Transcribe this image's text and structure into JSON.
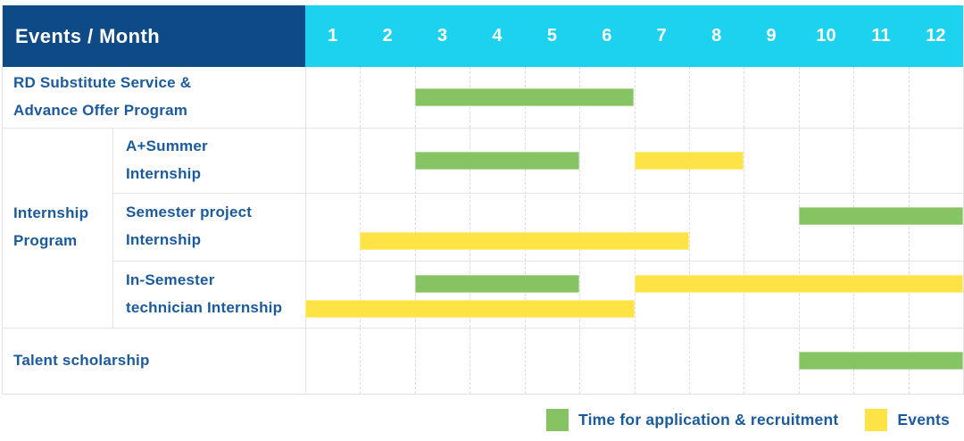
{
  "palette": {
    "header_bg": "#0e4a85",
    "months_bg": "#1cd2ef",
    "bar_green": "#85c363",
    "bar_yellow": "#fde345",
    "text_blue": "#1a5a9e",
    "grid_line": "#e3e3e3"
  },
  "header": {
    "title": "Events / Month",
    "months": [
      "1",
      "2",
      "3",
      "4",
      "5",
      "6",
      "7",
      "8",
      "9",
      "10",
      "11",
      "12"
    ]
  },
  "legend": {
    "items": [
      {
        "label": "Time for application & recruitment",
        "color": "green"
      },
      {
        "label": "Events",
        "color": "yellow"
      }
    ]
  },
  "chart_data": {
    "type": "gantt",
    "unit": "month",
    "x_domain": [
      1,
      12
    ],
    "legend_position": "bottom-right",
    "group": {
      "label": "Internship\nProgram",
      "first_row": 1,
      "last_row": 3
    },
    "rows": [
      {
        "label": "RD Substitute Service &\nAdvance Offer Program",
        "bars": [
          {
            "color": "green",
            "meaning": "Time for application & recruitment",
            "start": 3,
            "end": 6,
            "lane": "mid"
          }
        ]
      },
      {
        "label": "A+Summer\nInternship",
        "bars": [
          {
            "color": "green",
            "meaning": "Time for application & recruitment",
            "start": 3,
            "end": 5,
            "lane": "mid"
          },
          {
            "color": "yellow",
            "meaning": "Events",
            "start": 7,
            "end": 8,
            "lane": "mid"
          }
        ]
      },
      {
        "label": "Semester project\nInternship",
        "bars": [
          {
            "color": "green",
            "meaning": "Time for application & recruitment",
            "start": 10,
            "end": 12,
            "lane": "upper"
          },
          {
            "color": "yellow",
            "meaning": "Events",
            "start": 2,
            "end": 7,
            "lane": "lower"
          }
        ]
      },
      {
        "label": "In-Semester\ntechnician Internship",
        "bars": [
          {
            "color": "green",
            "meaning": "Time for application & recruitment",
            "start": 3,
            "end": 5,
            "lane": "upper"
          },
          {
            "color": "yellow",
            "meaning": "Events",
            "start": 7,
            "end": 12,
            "lane": "upper"
          },
          {
            "color": "yellow",
            "meaning": "Events",
            "start": 1,
            "end": 6,
            "lane": "lower"
          }
        ]
      },
      {
        "label": "Talent scholarship",
        "bars": [
          {
            "color": "green",
            "meaning": "Time for application & recruitment",
            "start": 10,
            "end": 12,
            "lane": "mid"
          }
        ]
      }
    ]
  }
}
